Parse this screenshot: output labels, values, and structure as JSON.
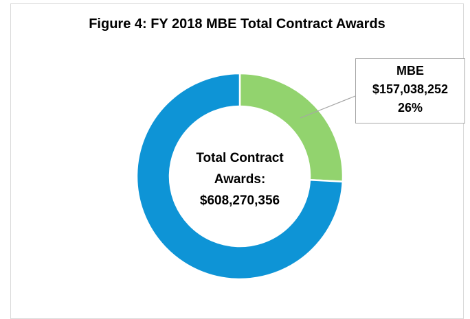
{
  "chart_data": {
    "type": "pie",
    "donut": true,
    "title": "Figure 4: FY 2018 MBE Total Contract Awards",
    "categories": [
      "MBE",
      null
    ],
    "values": [
      157038252,
      451232104
    ],
    "value_labels": [
      "$157,038,252",
      null
    ],
    "percent_labels": [
      "26%",
      null
    ],
    "colors": [
      "#92d36e",
      "#0e94d6"
    ],
    "annotations": [
      "Total Contract Awards:",
      "$608,270,356"
    ]
  }
}
